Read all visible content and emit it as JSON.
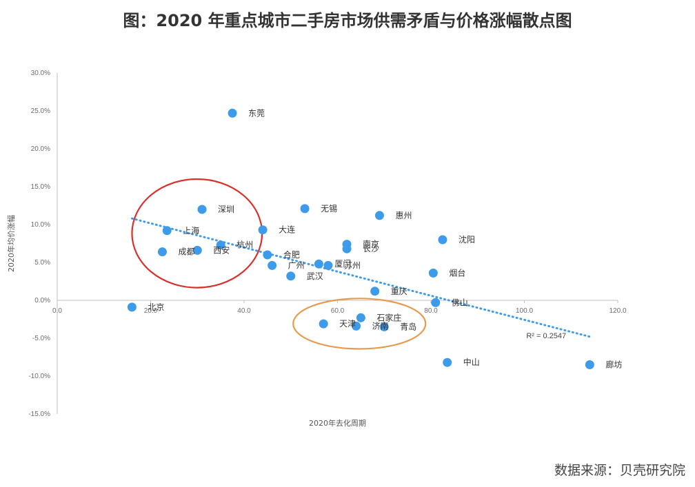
{
  "title": "图：2020 年重点城市二手房市场供需矛盾与价格涨幅散点图",
  "source": "数据来源：贝壳研究院",
  "chart_data": {
    "type": "scatter",
    "xlabel": "2020年去化周期",
    "ylabel": "2020年均价涨幅",
    "xlim": [
      0,
      120
    ],
    "ylim": [
      -15,
      30
    ],
    "x_ticks": [
      0,
      20,
      40,
      60,
      80,
      100,
      120
    ],
    "x_tick_labels": [
      "0.0",
      "20.0",
      "40.0",
      "60.0",
      "80.0",
      "100.0",
      "120.0"
    ],
    "y_ticks": [
      30,
      25,
      20,
      15,
      10,
      5,
      0,
      -5,
      -10,
      -15
    ],
    "y_tick_labels": [
      "30.0%",
      "25.0%",
      "20.0%",
      "15.0%",
      "10.0%",
      "5.0%",
      "0.0%",
      "-5.0%",
      "-10.0%",
      "-15.0%"
    ],
    "points": [
      {
        "label": "东莞",
        "x": 37.5,
        "y": 24.7
      },
      {
        "label": "深圳",
        "x": 31.0,
        "y": 12.0
      },
      {
        "label": "无锡",
        "x": 53.0,
        "y": 12.1
      },
      {
        "label": "惠州",
        "x": 69.0,
        "y": 11.2
      },
      {
        "label": "上海",
        "x": 23.5,
        "y": 9.2
      },
      {
        "label": "大连",
        "x": 44.0,
        "y": 9.3
      },
      {
        "label": "沈阳",
        "x": 82.5,
        "y": 8.0
      },
      {
        "label": "成都",
        "x": 22.5,
        "y": 6.4
      },
      {
        "label": "西安",
        "x": 30.0,
        "y": 6.6
      },
      {
        "label": "杭州",
        "x": 35.0,
        "y": 7.3
      },
      {
        "label": "南京",
        "x": 62.0,
        "y": 7.4
      },
      {
        "label": "长沙",
        "x": 62.0,
        "y": 6.8
      },
      {
        "label": "合肥",
        "x": 45.0,
        "y": 6.0
      },
      {
        "label": "广州",
        "x": 46.0,
        "y": 4.6
      },
      {
        "label": "厦门",
        "x": 56.0,
        "y": 4.8
      },
      {
        "label": "苏州",
        "x": 58.0,
        "y": 4.6
      },
      {
        "label": "烟台",
        "x": 80.5,
        "y": 3.6
      },
      {
        "label": "武汉",
        "x": 50.0,
        "y": 3.2
      },
      {
        "label": "重庆",
        "x": 68.0,
        "y": 1.2
      },
      {
        "label": "佛山",
        "x": 81.0,
        "y": -0.3
      },
      {
        "label": "北京",
        "x": 16.0,
        "y": -0.9
      },
      {
        "label": "石家庄",
        "x": 65.0,
        "y": -2.3
      },
      {
        "label": "天津",
        "x": 57.0,
        "y": -3.1
      },
      {
        "label": "济南",
        "x": 64.0,
        "y": -3.4
      },
      {
        "label": "青岛",
        "x": 70.0,
        "y": -3.5
      },
      {
        "label": "中山",
        "x": 83.5,
        "y": -8.2
      },
      {
        "label": "廊坊",
        "x": 114.0,
        "y": -8.5
      }
    ],
    "trendline": {
      "type": "linear",
      "x_range": [
        16,
        114
      ],
      "y_range": [
        10.8,
        -4.8
      ],
      "r2_label": "R² = 0.2547"
    },
    "annotations": [
      {
        "shape": "ellipse",
        "color": "#d9302c",
        "around": [
          "深圳",
          "上海",
          "成都",
          "西安",
          "杭州"
        ]
      },
      {
        "shape": "ellipse",
        "color": "#e59a4e",
        "around": [
          "石家庄",
          "天津",
          "济南",
          "青岛"
        ]
      }
    ],
    "colors": {
      "point": "#3d9be9",
      "trendline": "#3d9be9",
      "axis": "#bfbfbf",
      "ellipse_red": "#d9302c",
      "ellipse_orange": "#e59a4e"
    },
    "grid": false,
    "legend": "none"
  }
}
